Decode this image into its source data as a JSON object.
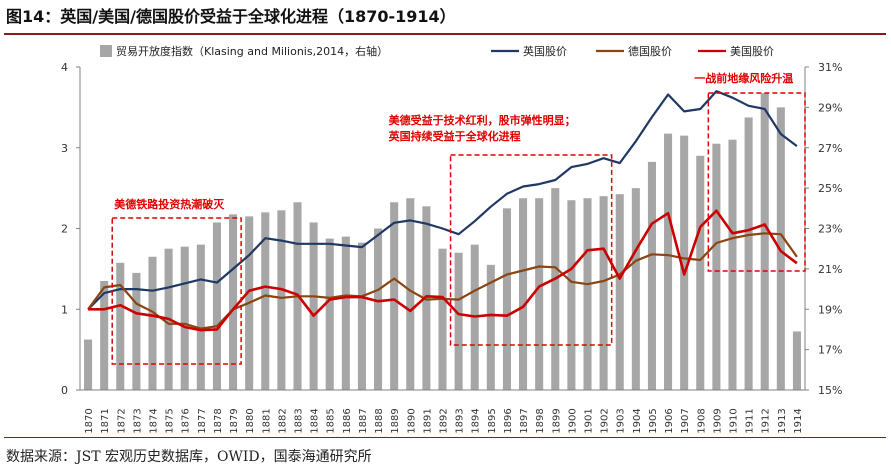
{
  "title": "图14：英国/美国/德国股价受益于全球化进程（1870-1914）",
  "source": "数据来源：JST 宏观历史数据库，OWID，国泰海通研究所",
  "colors": {
    "bar": "#a6a6a6",
    "uk": "#1f3864",
    "de": "#8b4513",
    "us": "#cc0000",
    "annotation": "#e00000",
    "axis": "#808080",
    "rule": "#8b1a1a"
  },
  "chart_data": {
    "type": "bar+line",
    "categories": [
      "1870",
      "1871",
      "1872",
      "1873",
      "1874",
      "1875",
      "1876",
      "1877",
      "1878",
      "1879",
      "1880",
      "1881",
      "1882",
      "1883",
      "1884",
      "1885",
      "1886",
      "1887",
      "1888",
      "1889",
      "1890",
      "1891",
      "1892",
      "1893",
      "1894",
      "1895",
      "1896",
      "1897",
      "1898",
      "1899",
      "1900",
      "1901",
      "1902",
      "1903",
      "1904",
      "1905",
      "1906",
      "1907",
      "1908",
      "1909",
      "1910",
      "1911",
      "1912",
      "1913",
      "1914"
    ],
    "left_axis": {
      "ylim": [
        0,
        4
      ],
      "ticks": [
        "0",
        "1",
        "2",
        "3",
        "4"
      ]
    },
    "right_axis": {
      "ylim": [
        15,
        31
      ],
      "ticks": [
        "15%",
        "17%",
        "19%",
        "21%",
        "23%",
        "25%",
        "27%",
        "29%",
        "31%"
      ]
    },
    "series": [
      {
        "name": "贸易开放度指数（Klasing and Milionis,2014，右轴）",
        "kind": "bar",
        "axis": "right",
        "values": [
          17.5,
          20.4,
          21.3,
          20.8,
          21.6,
          22.0,
          22.1,
          22.2,
          23.3,
          23.7,
          23.6,
          23.8,
          23.9,
          24.3,
          23.3,
          22.5,
          22.6,
          22.3,
          23.0,
          24.3,
          24.5,
          24.1,
          22.0,
          21.8,
          22.2,
          21.2,
          24.0,
          24.5,
          24.5,
          25.0,
          24.4,
          24.5,
          24.6,
          24.7,
          25.0,
          26.3,
          27.7,
          27.6,
          26.6,
          27.2,
          27.4,
          28.5,
          29.7,
          29.0,
          17.9
        ]
      },
      {
        "name": "英国股价",
        "kind": "line",
        "axis": "left",
        "values": [
          1.0,
          1.2,
          1.25,
          1.25,
          1.23,
          1.27,
          1.32,
          1.37,
          1.33,
          1.5,
          1.67,
          1.88,
          1.85,
          1.81,
          1.81,
          1.81,
          1.79,
          1.77,
          1.92,
          2.07,
          2.1,
          2.06,
          2.0,
          1.93,
          2.09,
          2.27,
          2.43,
          2.52,
          2.55,
          2.6,
          2.76,
          2.8,
          2.87,
          2.81,
          3.08,
          3.38,
          3.66,
          3.45,
          3.48,
          3.7,
          3.62,
          3.52,
          3.48,
          3.17,
          3.02
        ]
      },
      {
        "name": "德国股价",
        "kind": "line",
        "axis": "left",
        "values": [
          1.0,
          1.27,
          1.3,
          1.07,
          0.97,
          0.82,
          0.82,
          0.76,
          0.79,
          1.0,
          1.08,
          1.17,
          1.14,
          1.16,
          1.16,
          1.14,
          1.17,
          1.16,
          1.24,
          1.38,
          1.23,
          1.12,
          1.13,
          1.12,
          1.23,
          1.33,
          1.43,
          1.48,
          1.53,
          1.52,
          1.34,
          1.31,
          1.35,
          1.43,
          1.6,
          1.68,
          1.67,
          1.63,
          1.61,
          1.82,
          1.88,
          1.92,
          1.94,
          1.93,
          1.65
        ]
      },
      {
        "name": "美国股价",
        "kind": "line",
        "axis": "left",
        "values": [
          1.0,
          1.0,
          1.05,
          0.95,
          0.92,
          0.88,
          0.78,
          0.74,
          0.75,
          1.0,
          1.23,
          1.28,
          1.25,
          1.18,
          0.92,
          1.12,
          1.15,
          1.15,
          1.1,
          1.12,
          0.98,
          1.16,
          1.15,
          0.94,
          0.91,
          0.93,
          0.92,
          1.03,
          1.28,
          1.38,
          1.5,
          1.73,
          1.75,
          1.38,
          1.73,
          2.06,
          2.19,
          1.43,
          2.02,
          2.22,
          1.94,
          1.98,
          2.05,
          1.72,
          1.57
        ]
      }
    ],
    "annotations": [
      {
        "text": "美德铁路投资热潮破灭",
        "box": [
          "1872",
          "1879"
        ]
      },
      {
        "text1": "美德受益于技术红利，股市弹性明显；",
        "text2": "英国持续受益于全球化进程",
        "box": [
          "1893",
          "1902"
        ]
      },
      {
        "text": "一战前地缘风险升温",
        "box": [
          "1909",
          "1914"
        ]
      }
    ],
    "legend_placement": "top"
  }
}
